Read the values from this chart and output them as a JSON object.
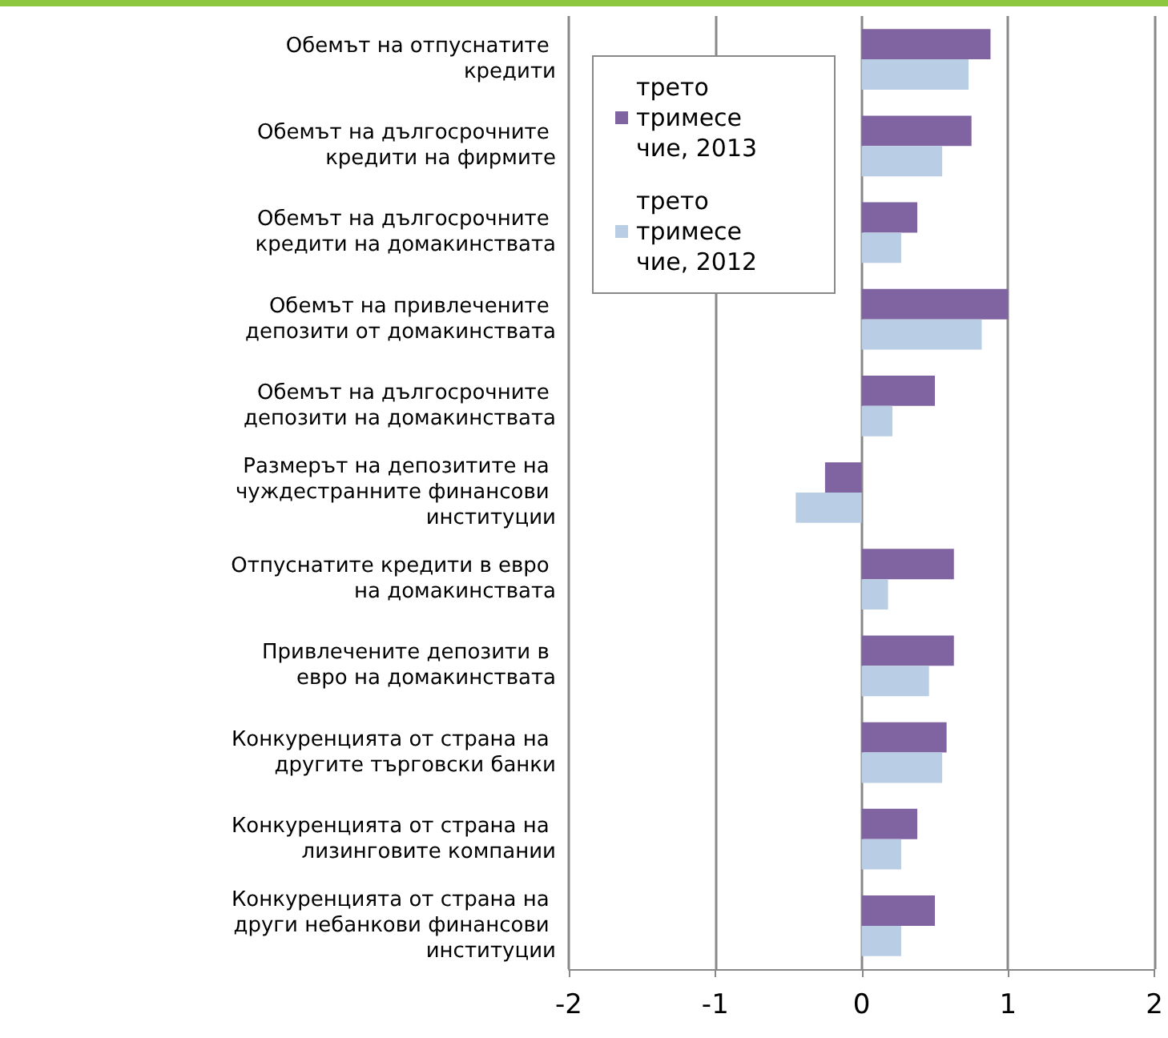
{
  "chart_data": {
    "type": "bar",
    "orientation": "horizontal",
    "categories": [
      "Обемът на отпуснатите кредити",
      "Обемът на дългосрочните кредити на фирмите",
      "Обемът на дългосрочните кредити на домакинствата",
      "Обемът на привлечените депозити от домакинствата",
      "Обемът на дългосрочните депозити на домакинствата",
      "Размерът на депозитите на чуждестранните финансови институции",
      "Отпуснатите кредити в евро на домакинствата",
      "Привлечените депозити в евро на домакинствата",
      "Конкуренцията от страна на другите търговски банки",
      "Конкуренцията от страна на лизинговите компании",
      "Конкуренцията от страна на други небанкови финансови институции"
    ],
    "series": [
      {
        "name": "трето тримесечие, 2013",
        "color": "#8064a2",
        "values": [
          0.88,
          0.75,
          0.38,
          1.0,
          0.5,
          -0.25,
          0.63,
          0.63,
          0.58,
          0.38,
          0.5
        ]
      },
      {
        "name": "трето тримесечие, 2012",
        "color": "#b9cde5",
        "values": [
          0.73,
          0.55,
          0.27,
          0.82,
          0.21,
          -0.45,
          0.18,
          0.46,
          0.55,
          0.27,
          0.27
        ]
      }
    ],
    "xlim": [
      -2,
      2
    ],
    "xticks": [
      -2,
      -1,
      0,
      1,
      2
    ],
    "grid": "x",
    "legend": "top left"
  }
}
